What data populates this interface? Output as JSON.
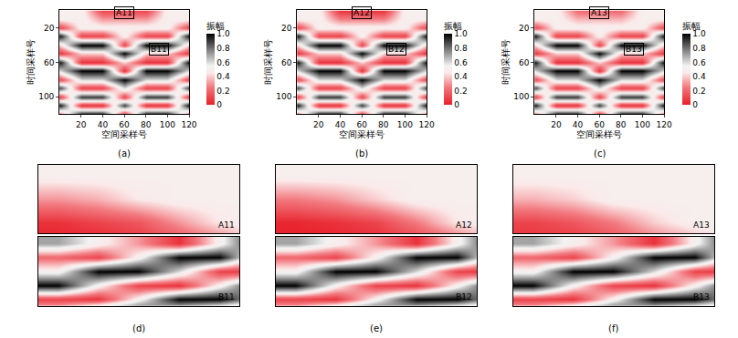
{
  "chart_data": [
    {
      "type": "heatmap",
      "label": "(a)",
      "x_label": "空间采样号",
      "y_label": "时间采样号",
      "x": [
        0,
        20,
        40,
        60,
        80,
        100,
        120
      ],
      "y": [
        0,
        10,
        20,
        30,
        40,
        50,
        60,
        70,
        80,
        90,
        100,
        110,
        120
      ],
      "xlim": [
        0,
        120
      ],
      "xticks": [
        20,
        40,
        60,
        80,
        100,
        120
      ],
      "ylim": [
        120,
        0
      ],
      "yticks": [
        20,
        60,
        100
      ],
      "z": [
        [
          0.5,
          0.5,
          0.1,
          0.1,
          0.1,
          0.5,
          0.5
        ],
        [
          0.5,
          0.5,
          0.3,
          0.3,
          0.3,
          0.5,
          0.5
        ],
        [
          0.1,
          0.5,
          0.5,
          0.5,
          0.5,
          0.5,
          0.1
        ],
        [
          1,
          0.1,
          0.1,
          0.5,
          0.1,
          0.1,
          1
        ],
        [
          0.4,
          1,
          1,
          0.1,
          1,
          1,
          0.4
        ],
        [
          0.05,
          0.4,
          0.4,
          1,
          0.4,
          0.4,
          0.05
        ],
        [
          1,
          0.05,
          0.05,
          0.4,
          0.05,
          0.05,
          1
        ],
        [
          0.6,
          1,
          1,
          0.05,
          1,
          1,
          0.6
        ],
        [
          0.1,
          0.6,
          0.6,
          1,
          0.6,
          0.6,
          0.1
        ],
        [
          0.9,
          0.1,
          0.1,
          0.6,
          0.1,
          0.1,
          0.9
        ],
        [
          0.05,
          0.9,
          0.9,
          0.1,
          0.9,
          0.9,
          0.05
        ],
        [
          1,
          0.05,
          0.05,
          0.9,
          0.05,
          0.05,
          1
        ],
        [
          0.2,
          1,
          1,
          0.05,
          1,
          1,
          0.2
        ]
      ],
      "colorbar": {
        "title": "振幅",
        "range": [
          0,
          1
        ],
        "ticks": [
          0,
          0.2,
          0.4,
          0.6,
          0.8,
          {
            "value": 1,
            "label": "1.0"
          }
        ]
      },
      "boxes": [
        {
          "text": "A11",
          "x": 60,
          "y": 3
        },
        {
          "text": "B11",
          "x": 92,
          "y": 45
        }
      ]
    },
    {
      "type": "heatmap",
      "label": "(b)",
      "x_label": "空间采样号",
      "y_label": "时间采样号",
      "x": [
        0,
        20,
        40,
        60,
        80,
        100,
        120
      ],
      "y": [
        0,
        10,
        20,
        30,
        40,
        50,
        60,
        70,
        80,
        90,
        100,
        110,
        120
      ],
      "xlim": [
        0,
        120
      ],
      "xticks": [
        20,
        40,
        60,
        80,
        100,
        120
      ],
      "ylim": [
        120,
        0
      ],
      "yticks": [
        20,
        60,
        100
      ],
      "z": [
        [
          0.5,
          0.5,
          0.05,
          0.05,
          0.05,
          0.5,
          0.5
        ],
        [
          0.5,
          0.5,
          0.25,
          0.25,
          0.25,
          0.5,
          0.5
        ],
        [
          0.1,
          0.5,
          0.5,
          0.5,
          0.5,
          0.5,
          0.1
        ],
        [
          1,
          0.1,
          0.1,
          0.5,
          0.1,
          0.1,
          1
        ],
        [
          0.4,
          1,
          1,
          0.1,
          1,
          1,
          0.4
        ],
        [
          0.05,
          0.4,
          0.4,
          1,
          0.4,
          0.4,
          0.05
        ],
        [
          1,
          0.05,
          0.05,
          0.4,
          0.05,
          0.05,
          1
        ],
        [
          0.6,
          1,
          1,
          0.05,
          1,
          1,
          0.6
        ],
        [
          0.1,
          0.6,
          0.6,
          1,
          0.6,
          0.6,
          0.1
        ],
        [
          0.9,
          0.1,
          0.1,
          0.6,
          0.1,
          0.1,
          0.9
        ],
        [
          0.05,
          0.9,
          0.9,
          0.1,
          0.9,
          0.9,
          0.05
        ],
        [
          1,
          0.05,
          0.05,
          0.9,
          0.05,
          0.05,
          1
        ],
        [
          0.2,
          1,
          1,
          0.05,
          1,
          1,
          0.2
        ]
      ],
      "colorbar": {
        "title": "振幅",
        "range": [
          0,
          1
        ],
        "ticks": [
          0,
          0.2,
          0.4,
          0.6,
          0.8,
          {
            "value": 1,
            "label": "1.0"
          }
        ]
      },
      "boxes": [
        {
          "text": "A12",
          "x": 60,
          "y": 3
        },
        {
          "text": "B12",
          "x": 92,
          "y": 45
        }
      ]
    },
    {
      "type": "heatmap",
      "label": "(c)",
      "x_label": "空间采样号",
      "y_label": "时间采样号",
      "x": [
        0,
        20,
        40,
        60,
        80,
        100,
        120
      ],
      "y": [
        0,
        10,
        20,
        30,
        40,
        50,
        60,
        70,
        80,
        90,
        100,
        110,
        120
      ],
      "xlim": [
        0,
        120
      ],
      "xticks": [
        20,
        40,
        60,
        80,
        100,
        120
      ],
      "ylim": [
        120,
        0
      ],
      "yticks": [
        20,
        60,
        100
      ],
      "z": [
        [
          0.5,
          0.5,
          0.2,
          0.2,
          0.2,
          0.5,
          0.5
        ],
        [
          0.5,
          0.5,
          0.35,
          0.35,
          0.35,
          0.5,
          0.5
        ],
        [
          0.1,
          0.5,
          0.5,
          0.5,
          0.5,
          0.5,
          0.1
        ],
        [
          1,
          0.1,
          0.1,
          0.5,
          0.1,
          0.1,
          1
        ],
        [
          0.4,
          1,
          1,
          0.1,
          1,
          1,
          0.4
        ],
        [
          0.05,
          0.4,
          0.4,
          1,
          0.4,
          0.4,
          0.05
        ],
        [
          1,
          0.05,
          0.05,
          0.4,
          0.05,
          0.05,
          1
        ],
        [
          0.6,
          1,
          1,
          0.05,
          1,
          1,
          0.6
        ],
        [
          0.1,
          0.6,
          0.6,
          1,
          0.6,
          0.6,
          0.1
        ],
        [
          0.9,
          0.1,
          0.1,
          0.6,
          0.1,
          0.1,
          0.9
        ],
        [
          0.05,
          0.9,
          0.9,
          0.1,
          0.9,
          0.9,
          0.05
        ],
        [
          1,
          0.05,
          0.05,
          0.9,
          0.05,
          0.05,
          1
        ],
        [
          0.2,
          1,
          1,
          0.05,
          1,
          1,
          0.2
        ]
      ],
      "colorbar": {
        "title": "振幅",
        "range": [
          0,
          1
        ],
        "ticks": [
          0,
          0.2,
          0.4,
          0.6,
          0.8,
          {
            "value": 1,
            "label": "1.0"
          }
        ]
      },
      "boxes": [
        {
          "text": "A13",
          "x": 60,
          "y": 3
        },
        {
          "text": "B13",
          "x": 92,
          "y": 45
        }
      ]
    },
    {
      "type": "heatmap",
      "label": "(d)",
      "tick_labels": false,
      "range": [
        0,
        1
      ],
      "parts": [
        {
          "text": "A11",
          "z": [
            [
              0.5,
              0.5,
              0.5,
              0.5,
              0.5,
              0.5
            ],
            [
              0.3,
              0.35,
              0.45,
              0.5,
              0.5,
              0.5
            ],
            [
              0.05,
              0.1,
              0.15,
              0.3,
              0.45,
              0.5
            ],
            [
              0,
              0,
              0.05,
              0.1,
              0.2,
              0.4
            ]
          ]
        },
        {
          "text": "B11",
          "z": [
            [
              0.7,
              0.5,
              0.3,
              0.05,
              0.5,
              1
            ],
            [
              0.2,
              0.1,
              0.5,
              1,
              1,
              0.3
            ],
            [
              0.5,
              1,
              1,
              0.6,
              0.1,
              0.05
            ],
            [
              1,
              0.5,
              0.1,
              0.05,
              0.5,
              1
            ],
            [
              0.1,
              0.05,
              0.5,
              1,
              1,
              0.6
            ],
            [
              0.5,
              1,
              1,
              0.4,
              0.1,
              0.1
            ]
          ]
        }
      ]
    },
    {
      "type": "heatmap",
      "label": "(e)",
      "tick_labels": false,
      "range": [
        0,
        1
      ],
      "parts": [
        {
          "text": "A12",
          "z": [
            [
              0.5,
              0.5,
              0.5,
              0.5,
              0.5,
              0.5
            ],
            [
              0.25,
              0.3,
              0.4,
              0.5,
              0.5,
              0.5
            ],
            [
              0.02,
              0.05,
              0.1,
              0.25,
              0.45,
              0.5
            ],
            [
              0,
              0,
              0.02,
              0.05,
              0.15,
              0.4
            ]
          ]
        },
        {
          "text": "B12",
          "z": [
            [
              0.7,
              0.5,
              0.3,
              0.05,
              0.5,
              1
            ],
            [
              0.2,
              0.1,
              0.5,
              1,
              1,
              0.3
            ],
            [
              0.5,
              1,
              1,
              0.6,
              0.1,
              0.05
            ],
            [
              1,
              0.5,
              0.1,
              0.05,
              0.5,
              1
            ],
            [
              0.1,
              0.05,
              0.5,
              1,
              1,
              0.6
            ],
            [
              0.5,
              1,
              1,
              0.4,
              0.1,
              0.1
            ]
          ]
        }
      ]
    },
    {
      "type": "heatmap",
      "label": "(f)",
      "tick_labels": false,
      "range": [
        0,
        1
      ],
      "parts": [
        {
          "text": "A13",
          "z": [
            [
              0.5,
              0.5,
              0.5,
              0.5,
              0.5,
              0.5
            ],
            [
              0.35,
              0.4,
              0.5,
              0.5,
              0.5,
              0.5
            ],
            [
              0.1,
              0.15,
              0.25,
              0.4,
              0.5,
              0.5
            ],
            [
              0.05,
              0.05,
              0.1,
              0.2,
              0.3,
              0.45
            ]
          ]
        },
        {
          "text": "B13",
          "z": [
            [
              0.7,
              0.5,
              0.3,
              0.05,
              0.5,
              1
            ],
            [
              0.2,
              0.1,
              0.5,
              1,
              1,
              0.3
            ],
            [
              0.5,
              1,
              1,
              0.6,
              0.1,
              0.05
            ],
            [
              1,
              0.5,
              0.1,
              0.05,
              0.5,
              1
            ],
            [
              0.1,
              0.05,
              0.5,
              1,
              1,
              0.6
            ],
            [
              0.5,
              1,
              1,
              0.4,
              0.1,
              0.1
            ]
          ]
        }
      ]
    }
  ]
}
